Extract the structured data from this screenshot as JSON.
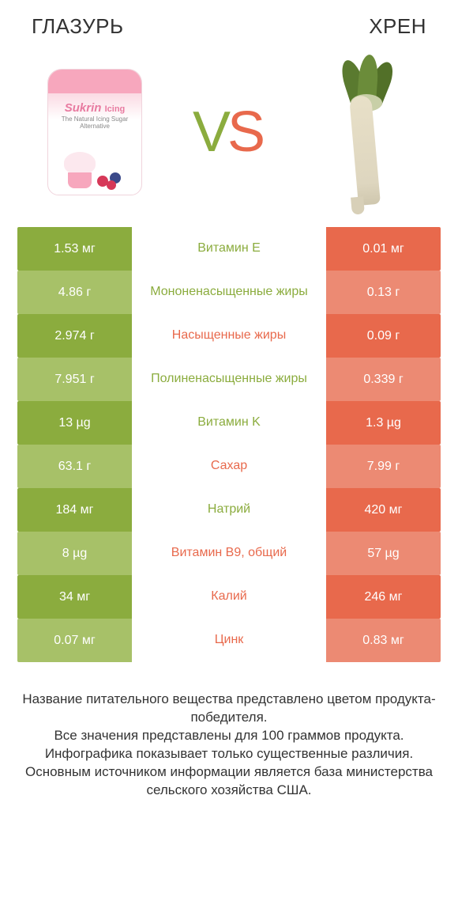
{
  "colors": {
    "green": "#8bac3e",
    "green_muted": "#a7c168",
    "orange": "#e8694c",
    "orange_muted": "#ec8a73",
    "mid_green_text": "#8bac3e",
    "mid_orange_text": "#e8694c",
    "bg": "#ffffff"
  },
  "header": {
    "left": "ГЛАЗУРЬ",
    "right": "ХРЕН"
  },
  "vs": {
    "v": "V",
    "s": "S"
  },
  "icing": {
    "brand": "Sukrin",
    "sub": "Icing",
    "tag": "The Natural Icing Sugar Alternative"
  },
  "rows": [
    {
      "left": "1.53 мг",
      "mid": "Витамин E",
      "right": "0.01 мг",
      "winner": "left"
    },
    {
      "left": "4.86 г",
      "mid": "Мононенасыщенные жиры",
      "right": "0.13 г",
      "winner": "left"
    },
    {
      "left": "2.974 г",
      "mid": "Насыщенные жиры",
      "right": "0.09 г",
      "winner": "right"
    },
    {
      "left": "7.951 г",
      "mid": "Полиненасыщенные жиры",
      "right": "0.339 г",
      "winner": "left"
    },
    {
      "left": "13 µg",
      "mid": "Витамин K",
      "right": "1.3 µg",
      "winner": "left"
    },
    {
      "left": "63.1 г",
      "mid": "Сахар",
      "right": "7.99 г",
      "winner": "right"
    },
    {
      "left": "184 мг",
      "mid": "Натрий",
      "right": "420 мг",
      "winner": "left"
    },
    {
      "left": "8 µg",
      "mid": "Витамин B9, общий",
      "right": "57 µg",
      "winner": "right"
    },
    {
      "left": "34 мг",
      "mid": "Калий",
      "right": "246 мг",
      "winner": "right"
    },
    {
      "left": "0.07 мг",
      "mid": "Цинк",
      "right": "0.83 мг",
      "winner": "right"
    }
  ],
  "footer": "Название питательного вещества представлено цветом продукта-победителя.\nВсе значения представлены для 100 граммов продукта.\nИнфографика показывает только существенные различия.\nОсновным источником информации является база министерства сельского хозяйства США."
}
